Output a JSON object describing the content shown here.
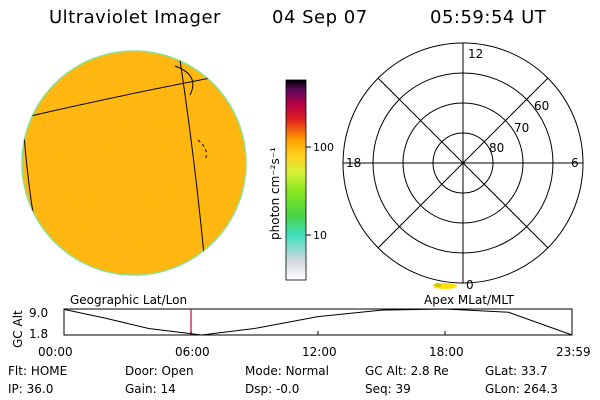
{
  "header": {
    "title": "Ultraviolet Imager",
    "date": "04 Sep 07",
    "time": "05:59:54 UT"
  },
  "colorbar": {
    "unit_label": "photon cm⁻²s⁻¹",
    "ticks": [
      "100",
      "10"
    ],
    "colors": [
      "#ffffff",
      "#cfd8dc",
      "#41e0c0",
      "#46d246",
      "#86e61e",
      "#d8f03a",
      "#ffd21e",
      "#ffa000",
      "#e0201e",
      "#b40046",
      "#5a0a5a",
      "#000000"
    ]
  },
  "polar": {
    "mlt_labels": {
      "top": "12",
      "left": "18",
      "right": "6",
      "bottom": "0"
    },
    "lat_labels": [
      "60",
      "70",
      "80"
    ]
  },
  "map_labels": {
    "geographic": "Geographic Lat/Lon",
    "apex": "Apex MLat/MLT"
  },
  "altitude_plot": {
    "ylabel": "GC Alt",
    "yticks": [
      "9.0",
      "1.8"
    ],
    "xticks": [
      "00:00",
      "06:00",
      "12:00",
      "18:00",
      "23:59"
    ],
    "marker_time": "05:59:54"
  },
  "chart_data": {
    "type": "line",
    "title": "",
    "xlabel": "",
    "ylabel": "GC Alt",
    "x": [
      0,
      2,
      4,
      6.5,
      9,
      12,
      15,
      18,
      21,
      24
    ],
    "y": [
      8.9,
      6.4,
      3.6,
      1.8,
      3.6,
      6.9,
      8.7,
      9.0,
      8.1,
      1.8
    ],
    "xlim": [
      0,
      24
    ],
    "ylim": [
      1.8,
      9.0
    ],
    "xtick_labels": [
      "00:00",
      "06:00",
      "12:00",
      "18:00",
      "23:59"
    ],
    "marker_x": 6.0
  },
  "info_rows": [
    [
      {
        "label": "Flt:",
        "value": "HOME"
      },
      {
        "label": "Door:",
        "value": "Open"
      },
      {
        "label": "Mode:",
        "value": "Normal"
      },
      {
        "label": "GC Alt:",
        "value": "2.8 Re"
      },
      {
        "label": "GLat:",
        "value": "33.7"
      }
    ],
    [
      {
        "label": "IP:",
        "value": "36.0"
      },
      {
        "label": "Gain:",
        "value": "14"
      },
      {
        "label": "Dsp:",
        "value": "-0.0"
      },
      {
        "label": "Seq:",
        "value": "39"
      },
      {
        "label": "GLon:",
        "value": "264.3"
      }
    ]
  ],
  "colors": {
    "disk_fill": "#ffb414",
    "disk_rim": "#8ce08c",
    "marker": "#c0004a",
    "aurora": "#ffe000"
  }
}
